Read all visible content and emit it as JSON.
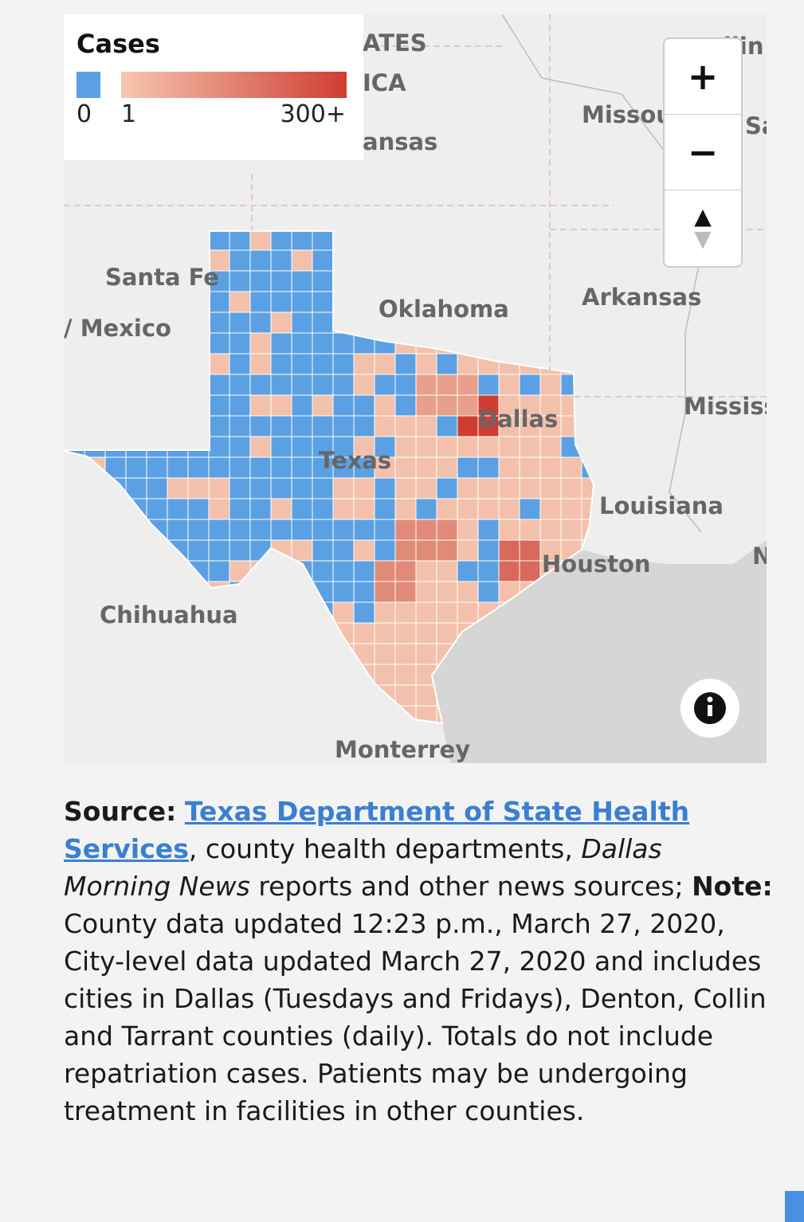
{
  "map": {
    "legend": {
      "title": "Cases",
      "labels": [
        "0",
        "1",
        "300+"
      ]
    },
    "place_labels": [
      "ATES",
      "ICA",
      "ansas",
      "Missou",
      "llin",
      "Sa",
      "Santa Fe",
      "/ Mexico",
      "Oklahoma",
      "Arkansas",
      "Mississ",
      "Dallas",
      "Texas",
      "Louisiana",
      "Houston",
      "N",
      "Chihuahua",
      "Monterrey"
    ]
  },
  "footer": {
    "source_label": "Source:",
    "source_link": "Texas Department of State Health Services",
    "source_text_1": ", county health departments, ",
    "source_italic": "Dallas Morning News",
    "source_text_2": " reports and other news sources; ",
    "note_label": "Note:",
    "note_text": " County data updated 12:23 p.m., March 27, 2020, City-level data updated March 27, 2020 and includes cities in Dallas (Tuesdays and Fridays), Denton, Collin and Tarrant counties (daily). Totals do not include repatriation cases. Patients may be undergoing treatment in facilities in other counties."
  }
}
